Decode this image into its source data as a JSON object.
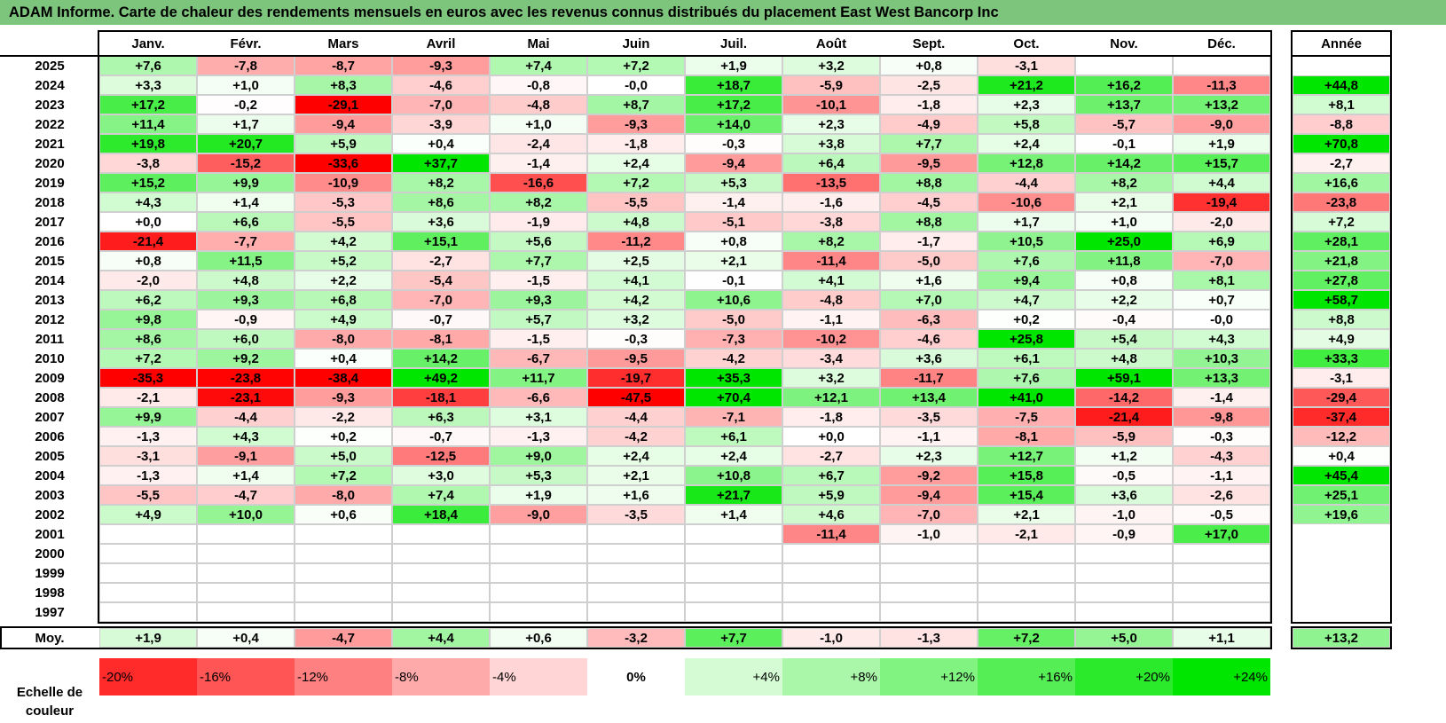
{
  "title": "ADAM Informe. Carte de chaleur des rendements mensuels en euros avec les revenus connus distribués du placement East West Bancorp Inc",
  "chart_data": {
    "type": "heatmap",
    "title": "ADAM Informe. Carte de chaleur des rendements mensuels en euros avec les revenus connus distribués du placement East West Bancorp Inc",
    "columns": [
      "Janv.",
      "Févr.",
      "Mars",
      "Avril",
      "Mai",
      "Juin",
      "Juil.",
      "Août",
      "Sept.",
      "Oct.",
      "Nov.",
      "Déc."
    ],
    "year_header": "Année",
    "rows": [
      {
        "year": "2025",
        "months": [
          "+7,6",
          "-7,8",
          "-8,7",
          "-9,3",
          "+7,4",
          "+7,2",
          "+1,9",
          "+3,2",
          "+0,8",
          "-3,1",
          "",
          ""
        ],
        "year_value": ""
      },
      {
        "year": "2024",
        "months": [
          "+3,3",
          "+1,0",
          "+8,3",
          "-4,6",
          "-0,8",
          "-0,0",
          "+18,7",
          "-5,9",
          "-2,5",
          "+21,2",
          "+16,2",
          "-11,3"
        ],
        "year_value": "+44,8"
      },
      {
        "year": "2023",
        "months": [
          "+17,2",
          "-0,2",
          "-29,1",
          "-7,0",
          "-4,8",
          "+8,7",
          "+17,2",
          "-10,1",
          "-1,8",
          "+2,3",
          "+13,7",
          "+13,2"
        ],
        "year_value": "+8,1"
      },
      {
        "year": "2022",
        "months": [
          "+11,4",
          "+1,7",
          "-9,4",
          "-3,9",
          "+1,0",
          "-9,3",
          "+14,0",
          "+2,3",
          "-4,9",
          "+5,8",
          "-5,7",
          "-9,0"
        ],
        "year_value": "-8,8"
      },
      {
        "year": "2021",
        "months": [
          "+19,8",
          "+20,7",
          "+5,9",
          "+0,4",
          "-2,4",
          "-1,8",
          "-0,3",
          "+3,8",
          "+7,7",
          "+2,4",
          "-0,1",
          "+1,9"
        ],
        "year_value": "+70,8"
      },
      {
        "year": "2020",
        "months": [
          "-3,8",
          "-15,2",
          "-33,6",
          "+37,7",
          "-1,4",
          "+2,4",
          "-9,4",
          "+6,4",
          "-9,5",
          "+12,8",
          "+14,2",
          "+15,7"
        ],
        "year_value": "-2,7"
      },
      {
        "year": "2019",
        "months": [
          "+15,2",
          "+9,9",
          "-10,9",
          "+8,2",
          "-16,6",
          "+7,2",
          "+5,3",
          "-13,5",
          "+8,8",
          "-4,4",
          "+8,2",
          "+4,4"
        ],
        "year_value": "+16,6"
      },
      {
        "year": "2018",
        "months": [
          "+4,3",
          "+1,4",
          "-5,3",
          "+8,6",
          "+8,2",
          "-5,5",
          "-1,4",
          "-1,6",
          "-4,5",
          "-10,6",
          "+2,1",
          "-19,4"
        ],
        "year_value": "-23,8"
      },
      {
        "year": "2017",
        "months": [
          "+0,0",
          "+6,6",
          "-5,5",
          "+3,6",
          "-1,9",
          "+4,8",
          "-5,1",
          "-3,8",
          "+8,8",
          "+1,7",
          "+1,0",
          "-2,0"
        ],
        "year_value": "+7,2"
      },
      {
        "year": "2016",
        "months": [
          "-21,4",
          "-7,7",
          "+4,2",
          "+15,1",
          "+5,6",
          "-11,2",
          "+0,8",
          "+8,2",
          "-1,7",
          "+10,5",
          "+25,0",
          "+6,9"
        ],
        "year_value": "+28,1"
      },
      {
        "year": "2015",
        "months": [
          "+0,8",
          "+11,5",
          "+5,2",
          "-2,7",
          "+7,7",
          "+2,5",
          "+2,1",
          "-11,4",
          "-5,0",
          "+7,6",
          "+11,8",
          "-7,0"
        ],
        "year_value": "+21,8"
      },
      {
        "year": "2014",
        "months": [
          "-2,0",
          "+4,8",
          "+2,2",
          "-5,4",
          "-1,5",
          "+4,1",
          "-0,1",
          "+4,1",
          "+1,6",
          "+9,4",
          "+0,8",
          "+8,1"
        ],
        "year_value": "+27,8"
      },
      {
        "year": "2013",
        "months": [
          "+6,2",
          "+9,3",
          "+6,8",
          "-7,0",
          "+9,3",
          "+4,2",
          "+10,6",
          "-4,8",
          "+7,0",
          "+4,7",
          "+2,2",
          "+0,7"
        ],
        "year_value": "+58,7"
      },
      {
        "year": "2012",
        "months": [
          "+9,8",
          "-0,9",
          "+4,9",
          "-0,7",
          "+5,7",
          "+3,2",
          "-5,0",
          "-1,1",
          "-6,3",
          "+0,2",
          "-0,4",
          "-0,0"
        ],
        "year_value": "+8,8"
      },
      {
        "year": "2011",
        "months": [
          "+8,6",
          "+6,0",
          "-8,0",
          "-8,1",
          "-1,5",
          "-0,3",
          "-7,3",
          "-10,2",
          "-4,6",
          "+25,8",
          "+5,4",
          "+4,3"
        ],
        "year_value": "+4,9"
      },
      {
        "year": "2010",
        "months": [
          "+7,2",
          "+9,2",
          "+0,4",
          "+14,2",
          "-6,7",
          "-9,5",
          "-4,2",
          "-3,4",
          "+3,6",
          "+6,1",
          "+4,8",
          "+10,3"
        ],
        "year_value": "+33,3"
      },
      {
        "year": "2009",
        "months": [
          "-35,3",
          "-23,8",
          "-38,4",
          "+49,2",
          "+11,7",
          "-19,7",
          "+35,3",
          "+3,2",
          "-11,7",
          "+7,6",
          "+59,1",
          "+13,3"
        ],
        "year_value": "-3,1"
      },
      {
        "year": "2008",
        "months": [
          "-2,1",
          "-23,1",
          "-9,3",
          "-18,1",
          "-6,6",
          "-47,5",
          "+70,4",
          "+12,1",
          "+13,4",
          "+41,0",
          "-14,2",
          "-1,4"
        ],
        "year_value": "-29,4"
      },
      {
        "year": "2007",
        "months": [
          "+9,9",
          "-4,4",
          "-2,2",
          "+6,3",
          "+3,1",
          "-4,4",
          "-7,1",
          "-1,8",
          "-3,5",
          "-7,5",
          "-21,4",
          "-9,8"
        ],
        "year_value": "-37,4"
      },
      {
        "year": "2006",
        "months": [
          "-1,3",
          "+4,3",
          "+0,2",
          "-0,7",
          "-1,3",
          "-4,2",
          "+6,1",
          "+0,0",
          "-1,1",
          "-8,1",
          "-5,9",
          "-0,3"
        ],
        "year_value": "-12,2"
      },
      {
        "year": "2005",
        "months": [
          "-3,1",
          "-9,1",
          "+5,0",
          "-12,5",
          "+9,0",
          "+2,4",
          "+2,4",
          "-2,7",
          "+2,3",
          "+12,7",
          "+1,2",
          "-4,3"
        ],
        "year_value": "+0,4"
      },
      {
        "year": "2004",
        "months": [
          "-1,3",
          "+1,4",
          "+7,2",
          "+3,0",
          "+5,3",
          "+2,1",
          "+10,8",
          "+6,7",
          "-9,2",
          "+15,8",
          "-0,5",
          "-1,1"
        ],
        "year_value": "+45,4"
      },
      {
        "year": "2003",
        "months": [
          "-5,5",
          "-4,7",
          "-8,0",
          "+7,4",
          "+1,9",
          "+1,6",
          "+21,7",
          "+5,9",
          "-9,4",
          "+15,4",
          "+3,6",
          "-2,6"
        ],
        "year_value": "+25,1"
      },
      {
        "year": "2002",
        "months": [
          "+4,9",
          "+10,0",
          "+0,6",
          "+18,4",
          "-9,0",
          "-3,5",
          "+1,4",
          "+4,6",
          "-7,0",
          "+2,1",
          "-1,0",
          "-0,5"
        ],
        "year_value": "+19,6"
      },
      {
        "year": "2001",
        "months": [
          "",
          "",
          "",
          "",
          "",
          "",
          "",
          "-11,4",
          "-1,0",
          "-2,1",
          "-0,9",
          "+17,0"
        ],
        "year_value": ""
      },
      {
        "year": "2000",
        "months": [
          "",
          "",
          "",
          "",
          "",
          "",
          "",
          "",
          "",
          "",
          "",
          ""
        ],
        "year_value": ""
      },
      {
        "year": "1999",
        "months": [
          "",
          "",
          "",
          "",
          "",
          "",
          "",
          "",
          "",
          "",
          "",
          ""
        ],
        "year_value": ""
      },
      {
        "year": "1998",
        "months": [
          "",
          "",
          "",
          "",
          "",
          "",
          "",
          "",
          "",
          "",
          "",
          ""
        ],
        "year_value": ""
      },
      {
        "year": "1997",
        "months": [
          "",
          "",
          "",
          "",
          "",
          "",
          "",
          "",
          "",
          "",
          "",
          ""
        ],
        "year_value": ""
      }
    ],
    "average": {
      "label": "Moy.",
      "months": [
        "+1,9",
        "+0,4",
        "-4,7",
        "+4,4",
        "+0,6",
        "-3,2",
        "+7,7",
        "-1,0",
        "-1,3",
        "+7,2",
        "+5,0",
        "+1,1"
      ],
      "year_value": "+13,2"
    },
    "color_scale": {
      "label": "Echelle de couleur",
      "stops": [
        "-20%",
        "-16%",
        "-12%",
        "-8%",
        "-4%",
        "0%",
        "+4%",
        "+8%",
        "+12%",
        "+16%",
        "+20%",
        "+24%"
      ],
      "negative_color": "#ff0000",
      "neutral_color": "#ffffff",
      "positive_color": "#00e600"
    }
  }
}
